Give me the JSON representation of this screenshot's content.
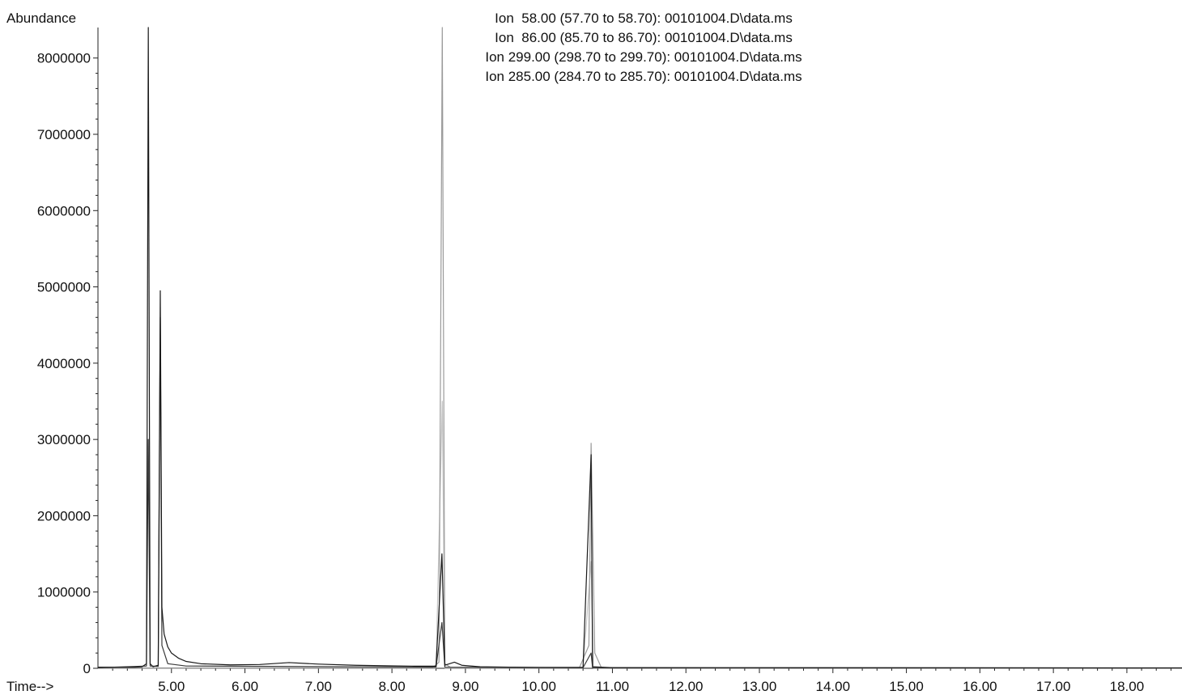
{
  "chart_data": {
    "type": "line",
    "title_lines": [
      "Ion  58.00 (57.70 to 58.70): 00101004.D\\data.ms",
      "Ion  86.00 (85.70 to 86.70): 00101004.D\\data.ms",
      "Ion 299.00 (298.70 to 299.70): 00101004.D\\data.ms",
      "Ion 285.00 (284.70 to 285.70): 00101004.D\\data.ms"
    ],
    "ylabel": "Abundance",
    "xlabel": "Time-->",
    "xlim": [
      4.0,
      18.75
    ],
    "ylim": [
      0,
      8400000
    ],
    "x_ticks": [
      "5.00",
      "6.00",
      "7.00",
      "8.00",
      "9.00",
      "10.00",
      "11.00",
      "12.00",
      "13.00",
      "14.00",
      "15.00",
      "16.00",
      "17.00",
      "18.00"
    ],
    "y_ticks": [
      "0",
      "1000000",
      "2000000",
      "3000000",
      "4000000",
      "5000000",
      "6000000",
      "7000000",
      "8000000"
    ],
    "grid": false,
    "series": [
      {
        "name": "Ion 58.00",
        "color": "#1a1a1a",
        "points": [
          [
            4.0,
            15000
          ],
          [
            4.5,
            15000
          ],
          [
            4.6,
            20000
          ],
          [
            4.66,
            60000
          ],
          [
            4.685,
            8400000
          ],
          [
            4.71,
            60000
          ],
          [
            4.75,
            20000
          ],
          [
            4.82,
            40000
          ],
          [
            4.848,
            4950000
          ],
          [
            4.87,
            800000
          ],
          [
            4.9,
            450000
          ],
          [
            4.95,
            280000
          ],
          [
            5.0,
            200000
          ],
          [
            5.1,
            130000
          ],
          [
            5.2,
            90000
          ],
          [
            5.4,
            60000
          ],
          [
            5.8,
            45000
          ],
          [
            6.2,
            50000
          ],
          [
            6.6,
            75000
          ],
          [
            7.0,
            55000
          ],
          [
            7.5,
            40000
          ],
          [
            8.0,
            32000
          ],
          [
            8.3,
            28000
          ],
          [
            8.6,
            28000
          ],
          [
            8.68,
            1500000
          ],
          [
            8.72,
            40000
          ],
          [
            8.85,
            80000
          ],
          [
            8.95,
            40000
          ],
          [
            9.2,
            20000
          ],
          [
            9.6,
            15000
          ],
          [
            10.0,
            12000
          ],
          [
            10.6,
            12000
          ],
          [
            10.71,
            2800000
          ],
          [
            10.73,
            20000
          ],
          [
            11.0,
            8000
          ],
          [
            18.75,
            5000
          ]
        ]
      },
      {
        "name": "Ion 86.00",
        "color": "#3a3a3a",
        "points": [
          [
            4.0,
            8000
          ],
          [
            4.66,
            30000
          ],
          [
            4.685,
            3000000
          ],
          [
            4.71,
            30000
          ],
          [
            4.82,
            25000
          ],
          [
            4.848,
            4600000
          ],
          [
            4.87,
            300000
          ],
          [
            4.95,
            60000
          ],
          [
            5.2,
            30000
          ],
          [
            8.6,
            15000
          ],
          [
            8.68,
            600000
          ],
          [
            8.72,
            15000
          ],
          [
            10.6,
            8000
          ],
          [
            10.71,
            200000
          ],
          [
            10.73,
            8000
          ],
          [
            18.75,
            4000
          ]
        ]
      },
      {
        "name": "Ion 299.00",
        "color": "#9a9a9a",
        "points": [
          [
            4.0,
            5000
          ],
          [
            8.55,
            5000
          ],
          [
            8.64,
            80000
          ],
          [
            8.685,
            8400000
          ],
          [
            8.72,
            60000
          ],
          [
            8.8,
            10000
          ],
          [
            10.55,
            6000
          ],
          [
            10.68,
            300000
          ],
          [
            10.71,
            2950000
          ],
          [
            10.76,
            200000
          ],
          [
            10.85,
            8000
          ],
          [
            18.75,
            4000
          ]
        ]
      },
      {
        "name": "Ion 285.00",
        "color": "#c4c4c4",
        "points": [
          [
            4.0,
            4000
          ],
          [
            8.6,
            4000
          ],
          [
            8.685,
            3500000
          ],
          [
            8.72,
            4000
          ],
          [
            10.6,
            4000
          ],
          [
            10.71,
            1400000
          ],
          [
            10.74,
            4000
          ],
          [
            18.75,
            3000
          ]
        ]
      }
    ]
  }
}
